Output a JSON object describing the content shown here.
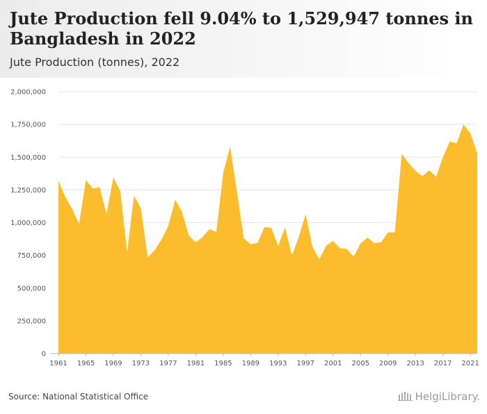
{
  "header": {
    "title": "Jute Production fell 9.04% to 1,529,947 tonnes in Bangladesh in 2022",
    "subtitle": "Jute Production (tonnes), 2022"
  },
  "footer": {
    "source": "Source: National Statistical Office",
    "brand": "HelgiLibrary."
  },
  "colors": {
    "area": "#fbbc2e",
    "grid": "#e6e6e6",
    "axis": "#bbbbbb"
  },
  "chart_data": {
    "type": "area",
    "grid": true,
    "legend": "none",
    "xlim": [
      1961,
      2022
    ],
    "ylim": [
      0,
      2000000
    ],
    "x_ticks": [
      "1961",
      "1965",
      "1969",
      "1973",
      "1977",
      "1981",
      "1985",
      "1989",
      "1993",
      "1997",
      "2001",
      "2005",
      "2009",
      "2013",
      "2017",
      "2021"
    ],
    "y_ticks": [
      "0",
      "250,000",
      "500,000",
      "750,000",
      "1,000,000",
      "1,250,000",
      "1,500,000",
      "1,750,000",
      "2,000,000"
    ],
    "y_tick_values": [
      0,
      250000,
      500000,
      750000,
      1000000,
      1250000,
      1500000,
      1750000,
      2000000
    ],
    "series": [
      {
        "values": [
          [
            1961,
            1320000
          ],
          [
            1962,
            1195000
          ],
          [
            1963,
            1105000
          ],
          [
            1964,
            990000
          ],
          [
            1965,
            1325000
          ],
          [
            1966,
            1260000
          ],
          [
            1967,
            1270000
          ],
          [
            1968,
            1065000
          ],
          [
            1969,
            1345000
          ],
          [
            1970,
            1240000
          ],
          [
            1971,
            775000
          ],
          [
            1972,
            1205000
          ],
          [
            1973,
            1110000
          ],
          [
            1974,
            735000
          ],
          [
            1975,
            790000
          ],
          [
            1976,
            870000
          ],
          [
            1977,
            975000
          ],
          [
            1978,
            1175000
          ],
          [
            1979,
            1080000
          ],
          [
            1980,
            900000
          ],
          [
            1981,
            850000
          ],
          [
            1982,
            890000
          ],
          [
            1983,
            950000
          ],
          [
            1984,
            930000
          ],
          [
            1985,
            1380000
          ],
          [
            1986,
            1580000
          ],
          [
            1987,
            1235000
          ],
          [
            1988,
            880000
          ],
          [
            1989,
            835000
          ],
          [
            1990,
            845000
          ],
          [
            1991,
            965000
          ],
          [
            1992,
            960000
          ],
          [
            1993,
            820000
          ],
          [
            1994,
            965000
          ],
          [
            1995,
            750000
          ],
          [
            1996,
            890000
          ],
          [
            1997,
            1065000
          ],
          [
            1998,
            815000
          ],
          [
            1999,
            720000
          ],
          [
            2000,
            825000
          ],
          [
            2001,
            860000
          ],
          [
            2002,
            805000
          ],
          [
            2003,
            800000
          ],
          [
            2004,
            740000
          ],
          [
            2005,
            840000
          ],
          [
            2006,
            885000
          ],
          [
            2007,
            845000
          ],
          [
            2008,
            850000
          ],
          [
            2009,
            925000
          ],
          [
            2010,
            925000
          ],
          [
            2011,
            1525000
          ],
          [
            2012,
            1455000
          ],
          [
            2013,
            1395000
          ],
          [
            2014,
            1355000
          ],
          [
            2015,
            1400000
          ],
          [
            2016,
            1350000
          ],
          [
            2017,
            1500000
          ],
          [
            2018,
            1620000
          ],
          [
            2019,
            1605000
          ],
          [
            2020,
            1750000
          ],
          [
            2021,
            1682000
          ],
          [
            2022,
            1529947
          ]
        ]
      }
    ]
  }
}
